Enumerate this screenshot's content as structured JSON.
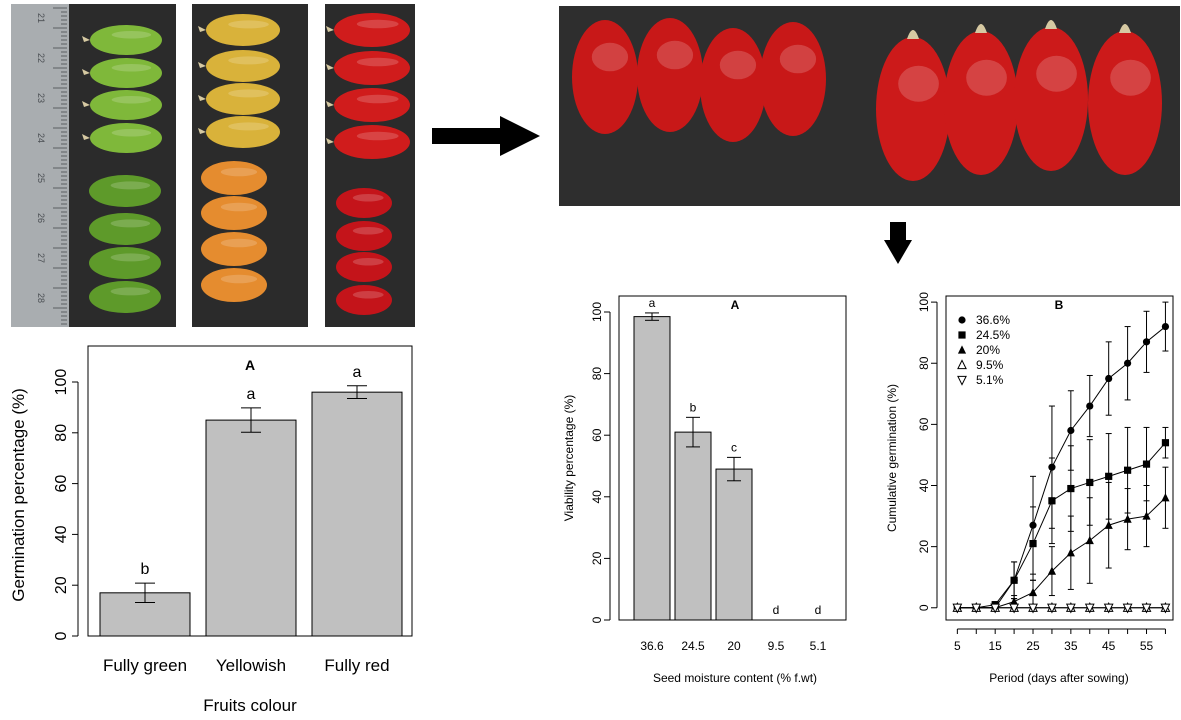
{
  "chart_data": [
    {
      "type": "bar",
      "panel_label": "A",
      "categories": [
        "Fully green",
        "Yellowish",
        "Fully red"
      ],
      "values": [
        17,
        85,
        96
      ],
      "errors": [
        3.8,
        4.8,
        2.5
      ],
      "letters": [
        "b",
        "a",
        "a"
      ],
      "xlabel": "Fruits colour",
      "ylabel": "Germination percentage (%)",
      "ylim": [
        0,
        100
      ],
      "yticks": [
        "0",
        "20",
        "40",
        "60",
        "80",
        "100"
      ],
      "grid": false
    },
    {
      "type": "bar",
      "panel_label": "A",
      "categories": [
        "36.6",
        "24.5",
        "20",
        "9.5",
        "5.1"
      ],
      "values": [
        98.5,
        61,
        49,
        0,
        0
      ],
      "errors": [
        1.2,
        4.8,
        3.8,
        0,
        0
      ],
      "letters": [
        "a",
        "b",
        "c",
        "d",
        "d"
      ],
      "xlabel": "Seed moisture content (% f.wt)",
      "ylabel": "Viability percentage (%)",
      "ylim": [
        0,
        100
      ],
      "yticks": [
        "0",
        "20",
        "40",
        "60",
        "80",
        "100"
      ],
      "grid": false
    },
    {
      "type": "line",
      "panel_label": "B",
      "x": [
        5,
        10,
        15,
        20,
        25,
        30,
        35,
        40,
        45,
        50,
        55,
        60
      ],
      "xticks": [
        "5",
        "15",
        "25",
        "35",
        "45",
        "55"
      ],
      "yticks": [
        "0",
        "20",
        "40",
        "60",
        "80",
        "100"
      ],
      "xlabel": "Period (days after sowing)",
      "ylabel": "Cumulative germination (%)",
      "xlim": [
        2,
        62
      ],
      "ylim": [
        -4,
        102
      ],
      "legend_position": "top-left",
      "grid": false,
      "series": [
        {
          "name": "36.6%",
          "marker": "circle-filled",
          "values": [
            0,
            0,
            0,
            9,
            27,
            46,
            58,
            66,
            75,
            80,
            87,
            92
          ],
          "errors": [
            0,
            0,
            0,
            6,
            16,
            20,
            13,
            10,
            12,
            12,
            10,
            8
          ]
        },
        {
          "name": "24.5%",
          "marker": "square-filled",
          "values": [
            0,
            0,
            1,
            9,
            21,
            35,
            39,
            41,
            43,
            45,
            47,
            54
          ],
          "errors": [
            0,
            0,
            1,
            6,
            12,
            14,
            14,
            14,
            14,
            14,
            12,
            5
          ]
        },
        {
          "name": "20%",
          "marker": "triangle-up-filled",
          "values": [
            0,
            0,
            0,
            2,
            5,
            12,
            18,
            22,
            27,
            29,
            30,
            36
          ],
          "errors": [
            0,
            0,
            0,
            2,
            4,
            8,
            12,
            14,
            14,
            10,
            10,
            10
          ]
        },
        {
          "name": "9.5%",
          "marker": "triangle-up-open",
          "values": [
            0,
            0,
            0,
            0,
            0,
            0,
            0,
            0,
            0,
            0,
            0,
            0
          ],
          "errors": [
            0,
            0,
            0,
            0,
            0,
            0,
            0,
            0,
            0,
            0,
            0,
            0
          ]
        },
        {
          "name": "5.1%",
          "marker": "triangle-down-open",
          "values": [
            0,
            0,
            0,
            0,
            0,
            0,
            0,
            0,
            0,
            0,
            0,
            0
          ],
          "errors": [
            0,
            0,
            0,
            0,
            0,
            0,
            0,
            0,
            0,
            0,
            0,
            0
          ]
        }
      ]
    }
  ],
  "photos": {
    "ruler_numbers": [
      "21",
      "22",
      "23",
      "24",
      "25",
      "26",
      "27",
      "28"
    ],
    "colors": {
      "background": "#2b2b2b",
      "ruler": "#a9adb0",
      "green": "#7fb83a",
      "yellow": "#d9b23a",
      "red": "#d01c1c",
      "stem": "#d6c9a2"
    }
  },
  "styles": {
    "bar_fill": "#c0c0c0",
    "axis_color": "#000000"
  }
}
